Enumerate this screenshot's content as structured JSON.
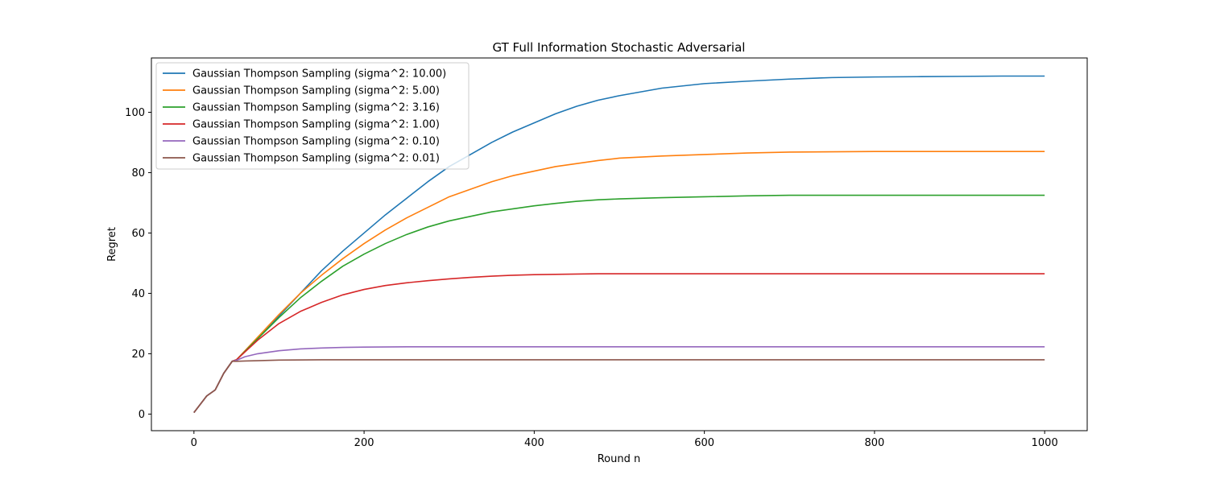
{
  "chart_data": {
    "type": "line",
    "title": "GT Full Information Stochastic Adversarial",
    "xlabel": "Round n",
    "ylabel": "Regret",
    "xlim": [
      -50,
      1050
    ],
    "ylim": [
      -5.5,
      118
    ],
    "xticks": [
      0,
      200,
      400,
      600,
      800,
      1000
    ],
    "yticks": [
      0,
      20,
      40,
      60,
      80,
      100
    ],
    "grid": false,
    "legend_position": "top-left",
    "series": [
      {
        "name": "Gaussian Thompson Sampling (sigma^2: 10.00)",
        "color": "#1f77b4",
        "x": [
          0,
          15,
          25,
          35,
          45,
          50,
          75,
          100,
          125,
          150,
          175,
          200,
          225,
          250,
          275,
          300,
          325,
          350,
          375,
          400,
          425,
          450,
          475,
          500,
          550,
          600,
          650,
          700,
          750,
          800,
          850,
          900,
          950,
          1000
        ],
        "y": [
          0.5,
          6,
          8,
          13.5,
          17.5,
          18,
          25,
          32.5,
          40,
          47.5,
          54,
          60,
          66,
          71.5,
          77,
          82,
          86,
          90,
          93.5,
          96.5,
          99.5,
          102,
          104,
          105.5,
          108,
          109.5,
          110.3,
          111,
          111.5,
          111.7,
          111.8,
          111.9,
          112,
          112
        ]
      },
      {
        "name": "Gaussian Thompson Sampling (sigma^2: 5.00)",
        "color": "#ff7f0e",
        "x": [
          0,
          15,
          25,
          35,
          45,
          50,
          75,
          100,
          125,
          150,
          175,
          200,
          225,
          250,
          275,
          300,
          325,
          350,
          375,
          400,
          425,
          450,
          475,
          500,
          550,
          600,
          650,
          700,
          750,
          800,
          850,
          900,
          950,
          1000
        ],
        "y": [
          0.5,
          6,
          8,
          13.5,
          17.5,
          18,
          25.5,
          33,
          40,
          46,
          51.5,
          56.5,
          61,
          65,
          68.5,
          72,
          74.5,
          77,
          79,
          80.5,
          82,
          83,
          84,
          84.8,
          85.5,
          86,
          86.5,
          86.8,
          86.9,
          87,
          87,
          87,
          87,
          87
        ]
      },
      {
        "name": "Gaussian Thompson Sampling (sigma^2: 3.16)",
        "color": "#2ca02c",
        "x": [
          0,
          15,
          25,
          35,
          45,
          50,
          75,
          100,
          125,
          150,
          175,
          200,
          225,
          250,
          275,
          300,
          325,
          350,
          375,
          400,
          425,
          450,
          475,
          500,
          550,
          600,
          650,
          700,
          750,
          800,
          850,
          900,
          950,
          1000
        ],
        "y": [
          0.5,
          6,
          8,
          13.5,
          17.5,
          18,
          25,
          32,
          38.5,
          44,
          49,
          53,
          56.5,
          59.5,
          62,
          64,
          65.5,
          67,
          68,
          69,
          69.8,
          70.5,
          71,
          71.3,
          71.7,
          72,
          72.3,
          72.5,
          72.5,
          72.5,
          72.5,
          72.5,
          72.5,
          72.5
        ]
      },
      {
        "name": "Gaussian Thompson Sampling (sigma^2: 1.00)",
        "color": "#d62728",
        "x": [
          0,
          15,
          25,
          35,
          45,
          50,
          75,
          100,
          125,
          150,
          175,
          200,
          225,
          250,
          275,
          300,
          325,
          350,
          375,
          400,
          425,
          450,
          475,
          500,
          550,
          600,
          650,
          700,
          750,
          800,
          850,
          900,
          950,
          1000
        ],
        "y": [
          0.5,
          6,
          8,
          13.5,
          17.5,
          18,
          24.5,
          30,
          34,
          37,
          39.5,
          41.3,
          42.6,
          43.5,
          44.2,
          44.8,
          45.3,
          45.7,
          46,
          46.2,
          46.3,
          46.4,
          46.5,
          46.5,
          46.5,
          46.5,
          46.5,
          46.5,
          46.5,
          46.5,
          46.5,
          46.5,
          46.5,
          46.5
        ]
      },
      {
        "name": "Gaussian Thompson Sampling (sigma^2: 0.10)",
        "color": "#9467bd",
        "x": [
          0,
          15,
          25,
          35,
          45,
          50,
          60,
          75,
          90,
          100,
          125,
          150,
          175,
          200,
          250,
          300,
          400,
          500,
          600,
          700,
          800,
          900,
          1000
        ],
        "y": [
          0.5,
          6,
          8,
          13.5,
          17.5,
          17.8,
          19,
          20,
          20.6,
          21,
          21.6,
          21.9,
          22.1,
          22.2,
          22.3,
          22.3,
          22.3,
          22.3,
          22.3,
          22.3,
          22.3,
          22.3,
          22.3
        ]
      },
      {
        "name": "Gaussian Thompson Sampling (sigma^2: 0.01)",
        "color": "#8c564b",
        "x": [
          0,
          15,
          25,
          35,
          45,
          50,
          60,
          75,
          100,
          150,
          200,
          300,
          400,
          500,
          600,
          700,
          800,
          900,
          1000
        ],
        "y": [
          0.5,
          6,
          8,
          13.5,
          17.5,
          17.5,
          17.6,
          17.7,
          17.9,
          18,
          18,
          18,
          18,
          18,
          18,
          18,
          18,
          18,
          18
        ]
      }
    ]
  }
}
